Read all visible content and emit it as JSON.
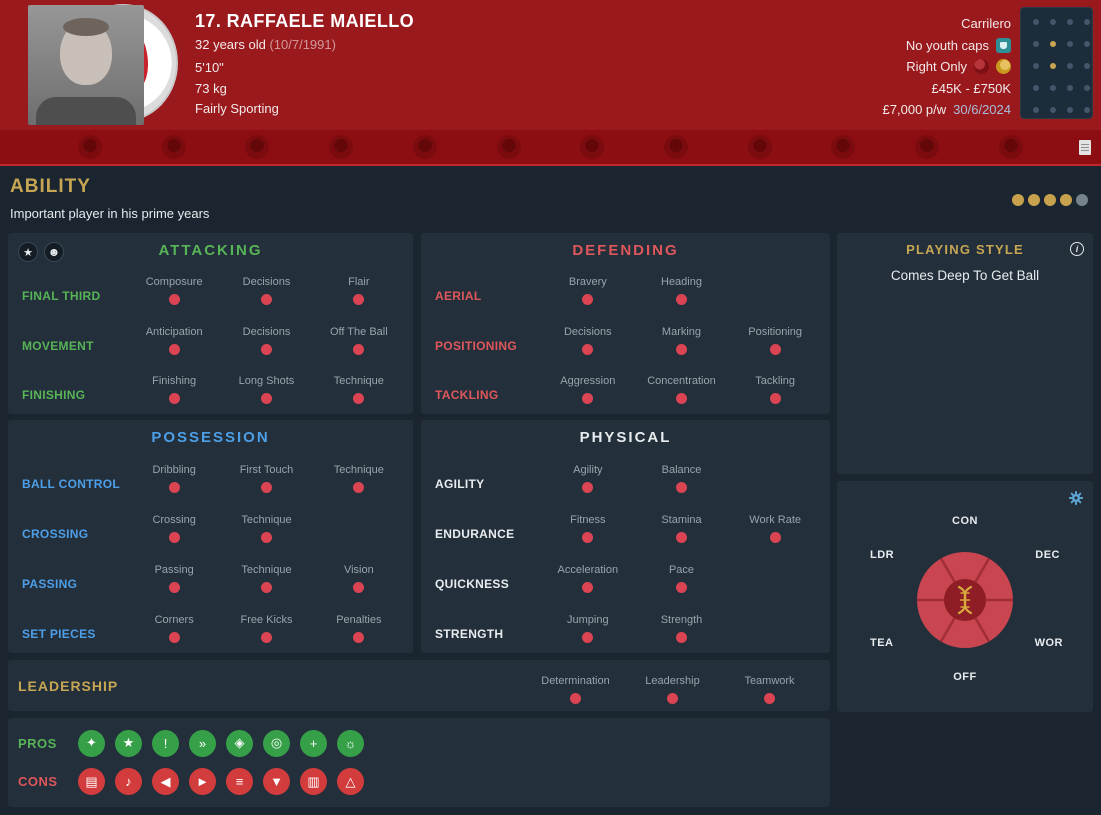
{
  "theme": {
    "header_bg": "#9A191D",
    "nav_bg": "#8D0E12",
    "body_bg": "#1A2530",
    "panel_bg": "#232F3B",
    "gold": "#C7A653",
    "green": "#57B457",
    "coral": "#DF575B",
    "blue": "#4D9FE8",
    "dot_red": "#DA4453",
    "pros_green": "#36A048",
    "cons_red": "#D23C3C"
  },
  "header": {
    "title": "17. RAFFAELE MAIELLO",
    "age": "32 years old",
    "birthdate": "(10/7/1991)",
    "height": "5'10\"",
    "weight": "73 kg",
    "personality": "Fairly Sporting",
    "role": "Carrilero",
    "youth_caps": "No youth caps",
    "preferred_foot": "Right Only",
    "value": "£45K - £750K",
    "wage": "£7,000 p/w",
    "contract_end": "30/6/2024",
    "position_map": {
      "cols": 4,
      "rows": 5,
      "highlighted": [
        [
          1,
          1
        ],
        [
          1,
          2
        ]
      ]
    }
  },
  "nav": {
    "icons": [
      "overview-icon",
      "profile-icon",
      "attributes-icon",
      "contract-icon",
      "transfers-icon",
      "reports-icon",
      "stats-icon",
      "training-icon",
      "medical-icon",
      "development-icon",
      "history-icon",
      "comparison-icon"
    ]
  },
  "page": {
    "title": "ABILITY",
    "subtitle": "Important player in his prime years",
    "ability_rating": {
      "filled": 4,
      "total": 5
    }
  },
  "panels": {
    "attacking": {
      "title": "ATTACKING",
      "rows": [
        {
          "label": "FINAL THIRD",
          "attrs": [
            "Composure",
            "Decisions",
            "Flair"
          ]
        },
        {
          "label": "MOVEMENT",
          "attrs": [
            "Anticipation",
            "Decisions",
            "Off The Ball"
          ]
        },
        {
          "label": "FINISHING",
          "attrs": [
            "Finishing",
            "Long Shots",
            "Technique"
          ]
        }
      ]
    },
    "defending": {
      "title": "DEFENDING",
      "rows": [
        {
          "label": "AERIAL",
          "attrs": [
            "Bravery",
            "Heading"
          ]
        },
        {
          "label": "POSITIONING",
          "attrs": [
            "Decisions",
            "Marking",
            "Positioning"
          ]
        },
        {
          "label": "TACKLING",
          "attrs": [
            "Aggression",
            "Concentration",
            "Tackling"
          ]
        }
      ]
    },
    "possession": {
      "title": "POSSESSION",
      "rows": [
        {
          "label": "BALL CONTROL",
          "attrs": [
            "Dribbling",
            "First Touch",
            "Technique"
          ]
        },
        {
          "label": "CROSSING",
          "attrs": [
            "Crossing",
            "Technique"
          ]
        },
        {
          "label": "PASSING",
          "attrs": [
            "Passing",
            "Technique",
            "Vision"
          ]
        },
        {
          "label": "SET PIECES",
          "attrs": [
            "Corners",
            "Free Kicks",
            "Penalties"
          ]
        }
      ]
    },
    "physical": {
      "title": "PHYSICAL",
      "rows": [
        {
          "label": "AGILITY",
          "attrs": [
            "Agility",
            "Balance"
          ]
        },
        {
          "label": "ENDURANCE",
          "attrs": [
            "Fitness",
            "Stamina",
            "Work Rate"
          ]
        },
        {
          "label": "QUICKNESS",
          "attrs": [
            "Acceleration",
            "Pace"
          ]
        },
        {
          "label": "STRENGTH",
          "attrs": [
            "Jumping",
            "Strength"
          ]
        }
      ]
    },
    "leadership": {
      "label": "LEADERSHIP",
      "attrs": [
        "Determination",
        "Leadership",
        "Teamwork"
      ]
    }
  },
  "playing_style": {
    "title": "PLAYING STYLE",
    "trait": "Comes Deep To Get Ball"
  },
  "radar": {
    "labels": {
      "top": "CON",
      "right_top": "DEC",
      "right_bottom": "WOR",
      "bottom": "OFF",
      "left_bottom": "TEA",
      "left_top": "LDR"
    }
  },
  "traits": {
    "pros_label": "PROS",
    "cons_label": "CONS",
    "pros": [
      {
        "name": "ball-skill-icon",
        "glyph": "✦"
      },
      {
        "name": "star-icon",
        "glyph": "★"
      },
      {
        "name": "big-games-icon",
        "glyph": "!"
      },
      {
        "name": "movement-icon",
        "glyph": "»"
      },
      {
        "name": "security-icon",
        "glyph": "◈"
      },
      {
        "name": "consistency-icon",
        "glyph": "◎"
      },
      {
        "name": "fitness-icon",
        "glyph": "+"
      },
      {
        "name": "ideas-icon",
        "glyph": "☼"
      }
    ],
    "cons": [
      {
        "name": "report-icon",
        "glyph": "▤"
      },
      {
        "name": "hook-icon",
        "glyph": "♪"
      },
      {
        "name": "whistle-icon",
        "glyph": "◀"
      },
      {
        "name": "flag-icon",
        "glyph": "►"
      },
      {
        "name": "layers-icon",
        "glyph": "≡"
      },
      {
        "name": "droplet-icon",
        "glyph": "▼"
      },
      {
        "name": "clipboard-icon",
        "glyph": "▥"
      },
      {
        "name": "flask-icon",
        "glyph": "△"
      }
    ]
  }
}
